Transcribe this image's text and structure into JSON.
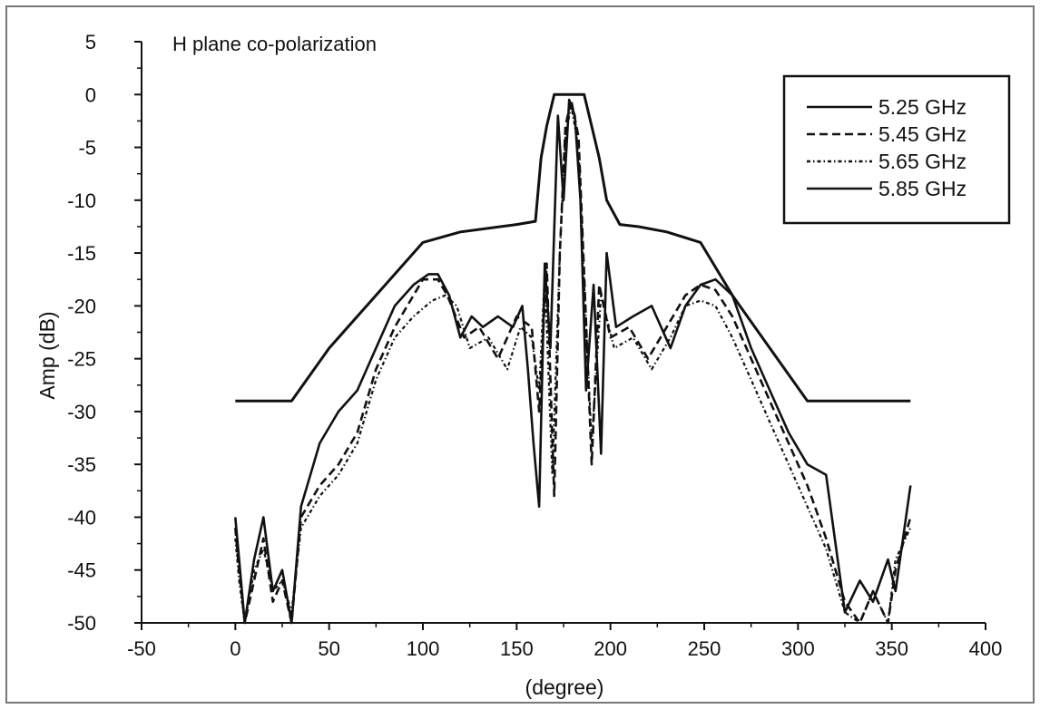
{
  "chart_data": {
    "type": "line",
    "title": "H plane co-polarization",
    "xlabel": "(degree)",
    "ylabel": "Amp (dB)",
    "xlim": [
      -50,
      400
    ],
    "ylim": [
      -50,
      5
    ],
    "x_ticks": [
      "-50",
      "0",
      "50",
      "100",
      "150",
      "200",
      "250",
      "300",
      "350",
      "400"
    ],
    "y_ticks": [
      "5",
      "0",
      "-5",
      "-10",
      "-15",
      "-20",
      "-25",
      "-30",
      "-35",
      "-40",
      "-45",
      "-50"
    ],
    "grid": false,
    "legend_position": "top-right",
    "series": [
      {
        "name": "5.25 GHz",
        "style": "solid",
        "x": [
          0,
          30,
          50,
          75,
          100,
          120,
          150,
          160,
          163,
          166,
          170,
          176,
          186,
          190,
          194,
          198,
          205,
          215,
          230,
          248,
          265,
          285,
          305,
          325,
          360
        ],
        "y": [
          -29,
          -29,
          -24,
          -19,
          -14,
          -13,
          -12.3,
          -12,
          -6,
          -3,
          0,
          0,
          0,
          -3,
          -6,
          -10,
          -12.3,
          -12.5,
          -13,
          -14,
          -19,
          -24,
          -29,
          -29,
          -29
        ]
      },
      {
        "name": "5.45 GHz",
        "style": "dashed",
        "x": [
          0,
          2,
          5,
          10,
          15,
          20,
          25,
          30,
          35,
          45,
          55,
          65,
          75,
          85,
          95,
          100,
          108,
          113,
          122,
          130,
          140,
          150,
          158,
          162,
          166,
          170,
          173,
          176,
          179,
          183,
          186,
          190,
          194,
          200,
          210,
          220,
          230,
          240,
          248,
          256,
          265,
          275,
          285,
          295,
          305,
          315,
          325,
          333,
          340,
          348,
          352,
          360
        ],
        "y": [
          -41,
          -45,
          -50,
          -46,
          -42,
          -48,
          -46,
          -50,
          -40,
          -37,
          -35,
          -32,
          -26,
          -22,
          -19,
          -17.5,
          -17.5,
          -19,
          -23,
          -22,
          -25,
          -21,
          -22,
          -30,
          -16,
          -38,
          -15,
          -3,
          -0.5,
          -4,
          -17,
          -35,
          -18,
          -23,
          -22,
          -25,
          -22,
          -19,
          -18,
          -18.5,
          -21,
          -25,
          -29,
          -33,
          -37,
          -42,
          -48,
          -50,
          -47,
          -50,
          -45,
          -40
        ]
      },
      {
        "name": "5.65 GHz",
        "style": "dash-dot",
        "x": [
          0,
          2,
          5,
          10,
          15,
          20,
          25,
          30,
          35,
          45,
          55,
          65,
          75,
          85,
          95,
          105,
          112,
          118,
          125,
          135,
          145,
          152,
          158,
          162,
          165,
          169,
          173,
          176,
          179,
          183,
          186,
          190,
          195,
          202,
          212,
          222,
          232,
          240,
          248,
          256,
          265,
          275,
          285,
          295,
          305,
          315,
          325,
          333,
          340,
          348,
          352,
          360
        ],
        "y": [
          -42,
          -46,
          -50,
          -45,
          -43,
          -47,
          -46,
          -49,
          -41,
          -38,
          -36,
          -33,
          -27,
          -23,
          -21,
          -19.5,
          -19,
          -20,
          -24,
          -23,
          -26,
          -22,
          -23,
          -28,
          -17,
          -36,
          -15,
          -4,
          -1,
          -5,
          -18,
          -33,
          -19,
          -24,
          -23,
          -26,
          -23,
          -20,
          -19.5,
          -20,
          -23,
          -27,
          -31,
          -35,
          -39,
          -43,
          -49,
          -50,
          -47,
          -50,
          -44,
          -41
        ]
      },
      {
        "name": "5.85 GHz",
        "style": "solid",
        "x": [
          0,
          2,
          5,
          10,
          15,
          20,
          25,
          30,
          35,
          45,
          55,
          65,
          75,
          85,
          95,
          103,
          108,
          114,
          120,
          126,
          132,
          140,
          148,
          153,
          156,
          159,
          162,
          165,
          168,
          172,
          175,
          178,
          181,
          184,
          187,
          191,
          195,
          198,
          203,
          212,
          222,
          232,
          240,
          248,
          256,
          265,
          275,
          285,
          295,
          305,
          315,
          325,
          333,
          340,
          348,
          352,
          360
        ],
        "y": [
          -40,
          -44,
          -50,
          -44,
          -40,
          -47,
          -45,
          -50,
          -39,
          -33,
          -30,
          -28,
          -24,
          -20,
          -18,
          -17,
          -17,
          -19,
          -23,
          -21,
          -22,
          -21,
          -22,
          -20,
          -26,
          -33,
          -39,
          -16,
          -24,
          -2,
          -10,
          -0.5,
          -2,
          -10,
          -28,
          -18,
          -34,
          -15,
          -22,
          -21,
          -20,
          -24,
          -20,
          -18,
          -17.5,
          -19,
          -24,
          -28,
          -32,
          -35,
          -36,
          -49,
          -46,
          -48,
          -44,
          -47,
          -37
        ]
      }
    ]
  }
}
